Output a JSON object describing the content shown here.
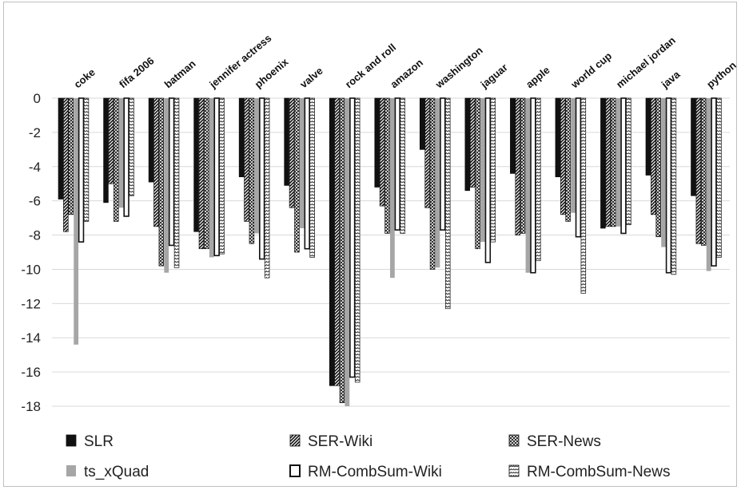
{
  "chart_data": {
    "type": "bar",
    "title": "",
    "xlabel": "",
    "ylabel": "",
    "ylim": [
      -18,
      0
    ],
    "yticks": [
      0,
      -2,
      -4,
      -6,
      -8,
      -10,
      -12,
      -14,
      -16,
      -18
    ],
    "grid": "horizontal",
    "legend_position": "bottom",
    "categories": [
      "coke",
      "fifa 2006",
      "batman",
      "jennifer actress",
      "phoenix",
      "valve",
      "rock and roll",
      "amazon",
      "washington",
      "jaguar",
      "apple",
      "world cup",
      "michael jordan",
      "java",
      "python"
    ],
    "series": [
      {
        "name": "SLR",
        "pattern": "solid-black",
        "color": "#111111",
        "values": [
          -5.9,
          -6.1,
          -4.9,
          -7.8,
          -4.6,
          -5.1,
          -16.8,
          -5.2,
          -3.0,
          -5.4,
          -4.4,
          -4.6,
          -7.6,
          -4.5,
          -5.7
        ]
      },
      {
        "name": "SER-Wiki",
        "pattern": "diagonal-hatch",
        "color": "#111111",
        "values": [
          -7.8,
          -5.0,
          -7.5,
          -8.8,
          -7.2,
          -6.4,
          -16.8,
          -6.3,
          -6.4,
          -5.2,
          -8.0,
          -6.8,
          -7.5,
          -6.8,
          -8.5
        ]
      },
      {
        "name": "SER-News",
        "pattern": "crosshatch",
        "color": "#111111",
        "values": [
          -6.8,
          -7.2,
          -9.8,
          -8.8,
          -8.5,
          -9.0,
          -17.8,
          -7.9,
          -10.0,
          -8.8,
          -7.9,
          -7.2,
          -7.5,
          -8.1,
          -8.6
        ]
      },
      {
        "name": "ts_xQuad",
        "pattern": "solid-gray",
        "color": "#a6a6a6",
        "values": [
          -14.4,
          -6.4,
          -10.2,
          -9.3,
          -7.9,
          -7.6,
          -18.0,
          -10.5,
          -9.9,
          -8.4,
          -10.2,
          -6.7,
          -7.5,
          -8.7,
          -10.1
        ]
      },
      {
        "name": "RM-CombSum-Wiki",
        "pattern": "outline",
        "color": "#111111",
        "values": [
          -8.4,
          -6.9,
          -8.6,
          -9.2,
          -9.4,
          -8.8,
          -16.3,
          -7.7,
          -7.7,
          -9.6,
          -10.2,
          -8.1,
          -7.9,
          -10.2,
          -9.8
        ]
      },
      {
        "name": "RM-CombSum-News",
        "pattern": "wave",
        "color": "#111111",
        "values": [
          -7.2,
          -5.7,
          -9.9,
          -9.1,
          -10.5,
          -9.3,
          -16.6,
          -7.9,
          -12.3,
          -8.4,
          -9.5,
          -11.4,
          -7.4,
          -10.3,
          -9.3
        ]
      }
    ]
  }
}
